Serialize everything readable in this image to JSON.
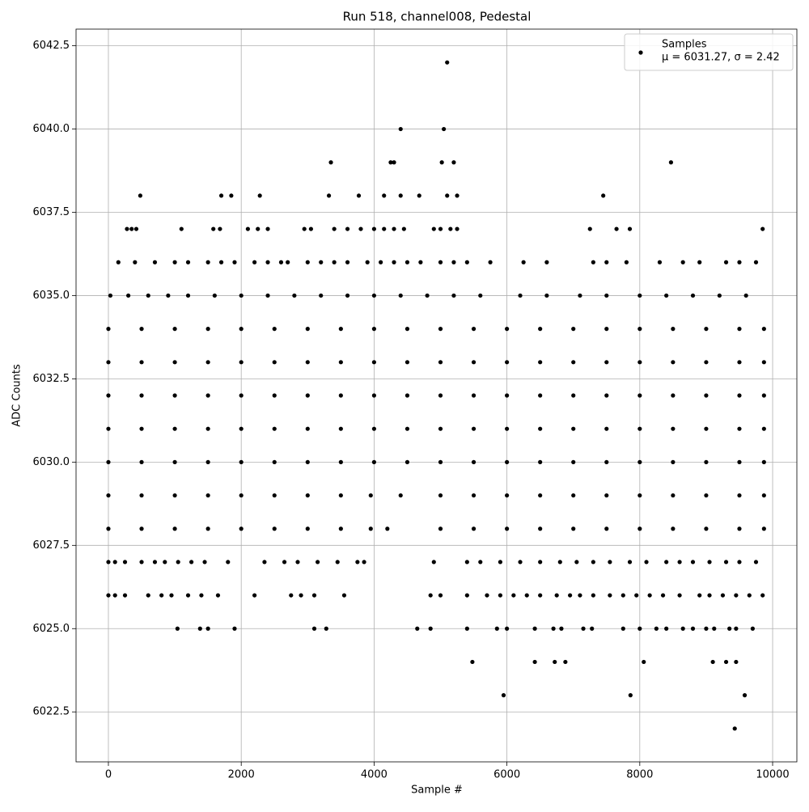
{
  "chart_data": {
    "type": "scatter",
    "title": "Run 518, channel008, Pedestal",
    "x_label": "Sample #",
    "y_label": "ADC Counts",
    "xlim": [
      -487,
      10365
    ],
    "ylim": [
      6021.0,
      6043.0
    ],
    "xticks": [
      0,
      2000,
      4000,
      6000,
      8000,
      10000
    ],
    "yticks": [
      6022.5,
      {
        "value": 6025,
        "label": "6025.0"
      },
      6027.5,
      {
        "value": 6030,
        "label": "6030.0"
      },
      6032.5,
      {
        "value": 6035,
        "label": "6035.0"
      },
      6037.5,
      {
        "value": 6040,
        "label": "6040.0"
      },
      6042.5
    ],
    "grid": true,
    "legend_loc": "upper right",
    "legend_label": "μ = 6031.27, σ = 2.42",
    "series": [
      {
        "name": "Samples",
        "color": "#000000",
        "x": [
          5100,
          4400,
          5050,
          3350,
          4250,
          4300,
          5020,
          5200,
          8470,
          480,
          1700,
          1850,
          2280,
          3320,
          3770,
          4150,
          4400,
          4680,
          5100,
          5250,
          7450,
          280,
          350,
          420,
          1100,
          1580,
          1680,
          2100,
          2250,
          2400,
          2950,
          3050,
          3400,
          3600,
          3800,
          4000,
          4150,
          4300,
          4450,
          4900,
          5000,
          5150,
          5250,
          7250,
          7650,
          7850,
          9850,
          150,
          400,
          700,
          1000,
          1200,
          1500,
          1700,
          1900,
          2200,
          2400,
          2600,
          2700,
          3000,
          3200,
          3400,
          3600,
          3900,
          4100,
          4300,
          4500,
          4700,
          5000,
          5200,
          5400,
          5750,
          6250,
          6600,
          7300,
          7500,
          7800,
          8300,
          8650,
          8900,
          9300,
          9500,
          9750,
          30,
          300,
          600,
          900,
          1200,
          1600,
          2000,
          2400,
          2800,
          3200,
          3600,
          4000,
          4400,
          4800,
          5200,
          5600,
          6200,
          6600,
          7100,
          7500,
          8000,
          8400,
          8800,
          9200,
          9600,
          0,
          500,
          1000,
          1500,
          2000,
          2500,
          3000,
          3500,
          4000,
          4500,
          5000,
          5500,
          6000,
          6500,
          7000,
          7500,
          8000,
          8500,
          9000,
          9500,
          9870,
          0,
          500,
          1000,
          1500,
          2000,
          2500,
          3000,
          3500,
          4000,
          4500,
          5000,
          5500,
          6000,
          6500,
          7000,
          7500,
          8000,
          8500,
          9000,
          9500,
          9870,
          0,
          500,
          1000,
          1500,
          2000,
          2500,
          3000,
          3500,
          4000,
          4500,
          5000,
          5500,
          6000,
          6500,
          7000,
          7500,
          8000,
          8500,
          9000,
          9500,
          9870,
          0,
          500,
          1000,
          1500,
          2000,
          2500,
          3000,
          3500,
          4000,
          4500,
          5000,
          5500,
          6000,
          6500,
          7000,
          7500,
          8000,
          8500,
          9000,
          9500,
          9870,
          0,
          500,
          1000,
          1500,
          2000,
          2500,
          3000,
          3500,
          4000,
          4500,
          5000,
          5500,
          6000,
          6500,
          7000,
          7500,
          8000,
          8500,
          9000,
          9500,
          9870,
          0,
          500,
          1000,
          1500,
          2000,
          2500,
          3000,
          3500,
          3950,
          4400,
          5000,
          5500,
          6000,
          6500,
          7000,
          7500,
          8000,
          8500,
          9000,
          9500,
          9870,
          0,
          500,
          1000,
          1500,
          2000,
          2500,
          3000,
          3500,
          3950,
          4200,
          5000,
          5500,
          6000,
          6500,
          7000,
          7500,
          8000,
          8500,
          9000,
          9500,
          9870,
          0,
          100,
          250,
          500,
          700,
          850,
          1050,
          1250,
          1450,
          1800,
          2350,
          2650,
          2850,
          3150,
          3450,
          3750,
          3850,
          4900,
          5400,
          5600,
          5900,
          6200,
          6500,
          6800,
          7050,
          7300,
          7550,
          7850,
          8100,
          8400,
          8600,
          8800,
          9050,
          9300,
          9500,
          9750,
          0,
          100,
          250,
          600,
          800,
          950,
          1200,
          1400,
          1650,
          2200,
          2750,
          2900,
          3100,
          3550,
          4850,
          5000,
          5400,
          5700,
          5900,
          6100,
          6300,
          6500,
          6750,
          6950,
          7100,
          7300,
          7550,
          7750,
          7950,
          8150,
          8350,
          8600,
          8900,
          9050,
          9250,
          9450,
          9650,
          9850,
          1040,
          1380,
          1500,
          1900,
          3100,
          3280,
          4650,
          4850,
          5400,
          5850,
          6000,
          6420,
          6700,
          6820,
          7150,
          7280,
          7750,
          8000,
          8250,
          8400,
          8650,
          8800,
          9000,
          9120,
          9350,
          9450,
          9700,
          5480,
          6420,
          6720,
          6880,
          8060,
          9100,
          9300,
          9450,
          5950,
          7860,
          9580,
          9430
        ],
        "values": [
          6042,
          6040,
          6040,
          6039,
          6039,
          6039,
          6039,
          6039,
          6039,
          6038,
          6038,
          6038,
          6038,
          6038,
          6038,
          6038,
          6038,
          6038,
          6038,
          6038,
          6038,
          6037,
          6037,
          6037,
          6037,
          6037,
          6037,
          6037,
          6037,
          6037,
          6037,
          6037,
          6037,
          6037,
          6037,
          6037,
          6037,
          6037,
          6037,
          6037,
          6037,
          6037,
          6037,
          6037,
          6037,
          6037,
          6037,
          6036,
          6036,
          6036,
          6036,
          6036,
          6036,
          6036,
          6036,
          6036,
          6036,
          6036,
          6036,
          6036,
          6036,
          6036,
          6036,
          6036,
          6036,
          6036,
          6036,
          6036,
          6036,
          6036,
          6036,
          6036,
          6036,
          6036,
          6036,
          6036,
          6036,
          6036,
          6036,
          6036,
          6036,
          6036,
          6036,
          6035,
          6035,
          6035,
          6035,
          6035,
          6035,
          6035,
          6035,
          6035,
          6035,
          6035,
          6035,
          6035,
          6035,
          6035,
          6035,
          6035,
          6035,
          6035,
          6035,
          6035,
          6035,
          6035,
          6035,
          6035,
          6034,
          6034,
          6034,
          6034,
          6034,
          6034,
          6034,
          6034,
          6034,
          6034,
          6034,
          6034,
          6034,
          6034,
          6034,
          6034,
          6034,
          6034,
          6034,
          6034,
          6034,
          6033,
          6033,
          6033,
          6033,
          6033,
          6033,
          6033,
          6033,
          6033,
          6033,
          6033,
          6033,
          6033,
          6033,
          6033,
          6033,
          6033,
          6033,
          6033,
          6033,
          6033,
          6032,
          6032,
          6032,
          6032,
          6032,
          6032,
          6032,
          6032,
          6032,
          6032,
          6032,
          6032,
          6032,
          6032,
          6032,
          6032,
          6032,
          6032,
          6032,
          6032,
          6032,
          6031,
          6031,
          6031,
          6031,
          6031,
          6031,
          6031,
          6031,
          6031,
          6031,
          6031,
          6031,
          6031,
          6031,
          6031,
          6031,
          6031,
          6031,
          6031,
          6031,
          6031,
          6030,
          6030,
          6030,
          6030,
          6030,
          6030,
          6030,
          6030,
          6030,
          6030,
          6030,
          6030,
          6030,
          6030,
          6030,
          6030,
          6030,
          6030,
          6030,
          6030,
          6030,
          6029,
          6029,
          6029,
          6029,
          6029,
          6029,
          6029,
          6029,
          6029,
          6029,
          6029,
          6029,
          6029,
          6029,
          6029,
          6029,
          6029,
          6029,
          6029,
          6029,
          6029,
          6028,
          6028,
          6028,
          6028,
          6028,
          6028,
          6028,
          6028,
          6028,
          6028,
          6028,
          6028,
          6028,
          6028,
          6028,
          6028,
          6028,
          6028,
          6028,
          6028,
          6028,
          6027,
          6027,
          6027,
          6027,
          6027,
          6027,
          6027,
          6027,
          6027,
          6027,
          6027,
          6027,
          6027,
          6027,
          6027,
          6027,
          6027,
          6027,
          6027,
          6027,
          6027,
          6027,
          6027,
          6027,
          6027,
          6027,
          6027,
          6027,
          6027,
          6027,
          6027,
          6027,
          6027,
          6027,
          6027,
          6027,
          6026,
          6026,
          6026,
          6026,
          6026,
          6026,
          6026,
          6026,
          6026,
          6026,
          6026,
          6026,
          6026,
          6026,
          6026,
          6026,
          6026,
          6026,
          6026,
          6026,
          6026,
          6026,
          6026,
          6026,
          6026,
          6026,
          6026,
          6026,
          6026,
          6026,
          6026,
          6026,
          6026,
          6026,
          6026,
          6026,
          6026,
          6026,
          6025,
          6025,
          6025,
          6025,
          6025,
          6025,
          6025,
          6025,
          6025,
          6025,
          6025,
          6025,
          6025,
          6025,
          6025,
          6025,
          6025,
          6025,
          6025,
          6025,
          6025,
          6025,
          6025,
          6025,
          6025,
          6025,
          6025,
          6024,
          6024,
          6024,
          6024,
          6024,
          6024,
          6024,
          6024,
          6023,
          6023,
          6023,
          6022
        ]
      }
    ]
  }
}
